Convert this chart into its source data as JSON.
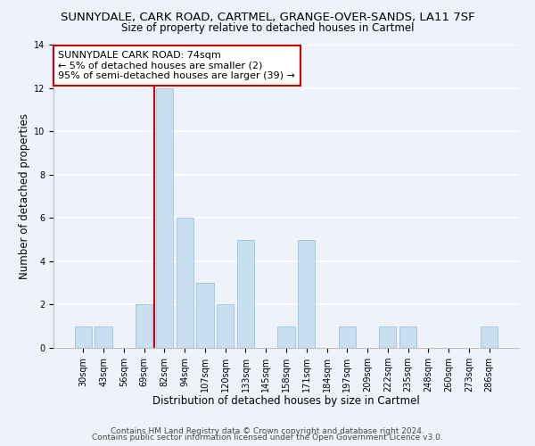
{
  "title": "SUNNYDALE, CARK ROAD, CARTMEL, GRANGE-OVER-SANDS, LA11 7SF",
  "subtitle": "Size of property relative to detached houses in Cartmel",
  "xlabel": "Distribution of detached houses by size in Cartmel",
  "ylabel": "Number of detached properties",
  "bar_color": "#c8dff0",
  "bar_edge_color": "#a8c8e8",
  "categories": [
    "30sqm",
    "43sqm",
    "56sqm",
    "69sqm",
    "82sqm",
    "94sqm",
    "107sqm",
    "120sqm",
    "133sqm",
    "145sqm",
    "158sqm",
    "171sqm",
    "184sqm",
    "197sqm",
    "209sqm",
    "222sqm",
    "235sqm",
    "248sqm",
    "260sqm",
    "273sqm",
    "286sqm"
  ],
  "values": [
    1,
    1,
    0,
    2,
    12,
    6,
    3,
    2,
    5,
    0,
    1,
    5,
    0,
    1,
    0,
    1,
    1,
    0,
    0,
    0,
    1
  ],
  "ylim": [
    0,
    14
  ],
  "yticks": [
    0,
    2,
    4,
    6,
    8,
    10,
    12,
    14
  ],
  "annotation_line1": "SUNNYDALE CARK ROAD: 74sqm",
  "annotation_line2": "← 5% of detached houses are smaller (2)",
  "annotation_line3": "95% of semi-detached houses are larger (39) →",
  "vline_x_index": 4,
  "vline_color": "#cc0000",
  "footer_line1": "Contains HM Land Registry data © Crown copyright and database right 2024.",
  "footer_line2": "Contains public sector information licensed under the Open Government Licence v3.0.",
  "background_color": "#eef3fb",
  "grid_color": "#ffffff",
  "title_fontsize": 9.5,
  "subtitle_fontsize": 8.5,
  "tick_fontsize": 7,
  "xlabel_fontsize": 8.5,
  "ylabel_fontsize": 8.5,
  "annotation_fontsize": 8,
  "footer_fontsize": 6.5
}
